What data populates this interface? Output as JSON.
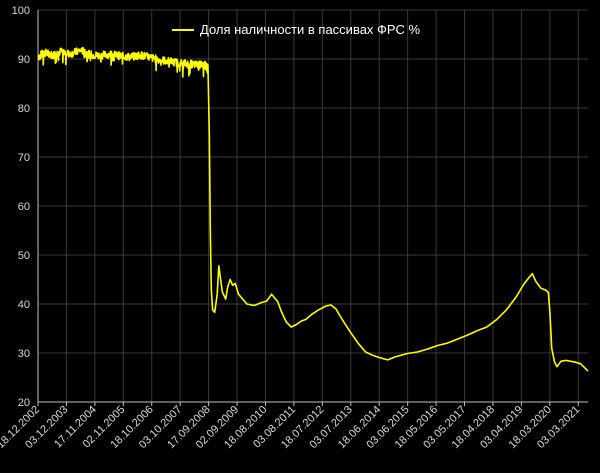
{
  "chart_data": {
    "type": "line",
    "legend": {
      "position": "top-center"
    },
    "grid": true,
    "colors": {
      "background": "#000000",
      "line": "#ffff00",
      "grid": "#3a3a3a",
      "text": "#d9d9d9"
    },
    "ylim": [
      20,
      100
    ],
    "yticks": [
      20,
      30,
      40,
      50,
      60,
      70,
      80,
      90,
      100
    ],
    "xlim": [
      "2002-12-18",
      "2021-07-01"
    ],
    "xticks": [
      "18.12.2002",
      "03.12.2003",
      "17.11.2004",
      "02.11.2005",
      "18.10.2006",
      "03.10.2007",
      "17.09.2008",
      "02.09.2009",
      "18.08.2010",
      "03.08.2011",
      "18.07.2012",
      "03.07.2013",
      "18.06.2014",
      "03.06.2015",
      "18.05.2016",
      "03.05.2017",
      "18.04.2018",
      "03.04.2019",
      "18.03.2020",
      "03.03.2021"
    ],
    "series": [
      {
        "name": "Доля наличности в пассивах ФРС %",
        "color": "#ffff00",
        "points": [
          [
            "2002-12-18",
            90.5
          ],
          [
            "2003-03-15",
            91.3
          ],
          [
            "2003-06-15",
            90.8
          ],
          [
            "2003-10-01",
            91.6
          ],
          [
            "2004-01-15",
            91.0
          ],
          [
            "2004-06-01",
            91.8
          ],
          [
            "2004-09-15",
            90.9
          ],
          [
            "2005-01-15",
            90.7
          ],
          [
            "2005-06-01",
            91.0
          ],
          [
            "2005-10-01",
            90.6
          ],
          [
            "2006-02-01",
            90.4
          ],
          [
            "2006-06-01",
            90.8
          ],
          [
            "2006-10-01",
            90.3
          ],
          [
            "2007-02-01",
            89.8
          ],
          [
            "2007-06-01",
            89.5
          ],
          [
            "2007-10-01",
            89.2
          ],
          [
            "2008-01-15",
            89.0
          ],
          [
            "2008-05-01",
            88.8
          ],
          [
            "2008-08-01",
            88.9
          ],
          [
            "2008-09-10",
            88.0
          ],
          [
            "2008-09-25",
            75.0
          ],
          [
            "2008-10-08",
            55.0
          ],
          [
            "2008-10-20",
            43.0
          ],
          [
            "2008-11-05",
            38.8
          ],
          [
            "2008-12-01",
            38.3
          ],
          [
            "2009-01-01",
            42.0
          ],
          [
            "2009-01-20",
            47.8
          ],
          [
            "2009-03-05",
            42.5
          ],
          [
            "2009-04-15",
            41.0
          ],
          [
            "2009-05-10",
            43.5
          ],
          [
            "2009-06-10",
            45.0
          ],
          [
            "2009-07-10",
            43.8
          ],
          [
            "2009-08-10",
            44.2
          ],
          [
            "2009-09-20",
            42.0
          ],
          [
            "2009-11-01",
            41.2
          ],
          [
            "2010-01-01",
            40.0
          ],
          [
            "2010-04-01",
            39.7
          ],
          [
            "2010-07-01",
            40.3
          ],
          [
            "2010-09-01",
            40.6
          ],
          [
            "2010-11-01",
            42.0
          ],
          [
            "2011-01-15",
            40.5
          ],
          [
            "2011-03-01",
            38.5
          ],
          [
            "2011-05-01",
            36.3
          ],
          [
            "2011-07-01",
            35.3
          ],
          [
            "2011-09-01",
            35.8
          ],
          [
            "2011-11-01",
            36.5
          ],
          [
            "2012-01-01",
            36.9
          ],
          [
            "2012-03-01",
            37.8
          ],
          [
            "2012-06-01",
            38.8
          ],
          [
            "2012-09-01",
            39.6
          ],
          [
            "2012-11-01",
            39.8
          ],
          [
            "2013-01-01",
            39.0
          ],
          [
            "2013-04-01",
            36.5
          ],
          [
            "2013-07-01",
            34.2
          ],
          [
            "2013-10-01",
            32.0
          ],
          [
            "2014-01-01",
            30.2
          ],
          [
            "2014-04-01",
            29.5
          ],
          [
            "2014-07-01",
            29.0
          ],
          [
            "2014-10-01",
            28.6
          ],
          [
            "2015-01-01",
            29.2
          ],
          [
            "2015-06-01",
            29.9
          ],
          [
            "2015-10-01",
            30.2
          ],
          [
            "2016-02-01",
            30.8
          ],
          [
            "2016-06-01",
            31.5
          ],
          [
            "2016-10-01",
            32.0
          ],
          [
            "2017-02-01",
            32.8
          ],
          [
            "2017-06-01",
            33.6
          ],
          [
            "2017-10-01",
            34.5
          ],
          [
            "2018-02-01",
            35.3
          ],
          [
            "2018-06-01",
            36.8
          ],
          [
            "2018-10-01",
            38.8
          ],
          [
            "2019-02-01",
            41.5
          ],
          [
            "2019-05-01",
            44.0
          ],
          [
            "2019-07-01",
            45.3
          ],
          [
            "2019-08-15",
            46.2
          ],
          [
            "2019-10-01",
            44.5
          ],
          [
            "2019-12-01",
            43.2
          ],
          [
            "2020-02-01",
            42.8
          ],
          [
            "2020-03-01",
            42.3
          ],
          [
            "2020-03-20",
            38.0
          ],
          [
            "2020-04-10",
            31.0
          ],
          [
            "2020-05-15",
            28.2
          ],
          [
            "2020-06-15",
            27.2
          ],
          [
            "2020-08-01",
            28.3
          ],
          [
            "2020-10-01",
            28.5
          ],
          [
            "2020-12-01",
            28.3
          ],
          [
            "2021-02-01",
            28.1
          ],
          [
            "2021-04-01",
            27.8
          ],
          [
            "2021-06-01",
            26.8
          ],
          [
            "2021-07-01",
            26.3
          ]
        ]
      }
    ]
  }
}
